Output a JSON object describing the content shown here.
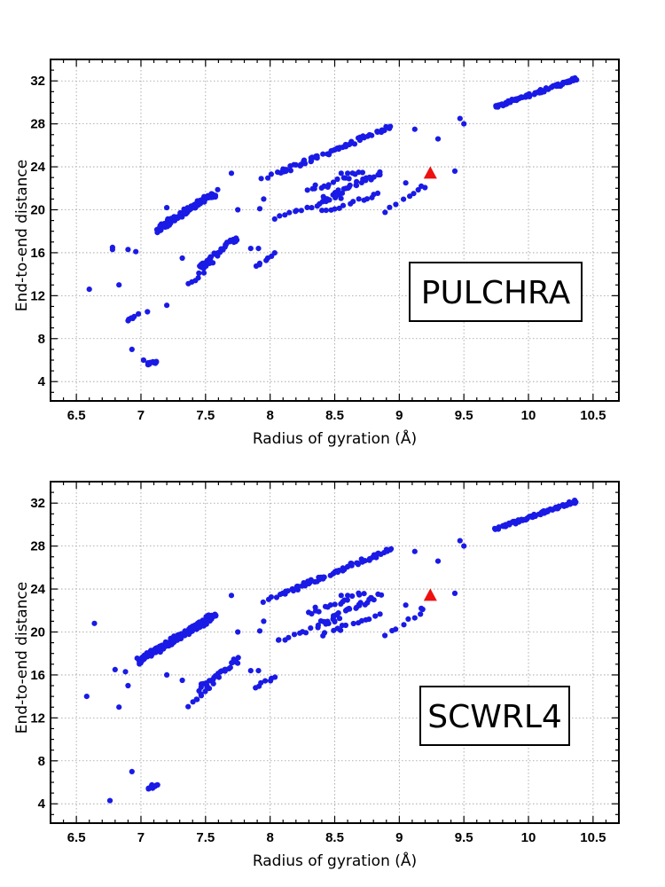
{
  "colors": {
    "points": "#1a1ae6",
    "reference": "#ee1111",
    "grid": "#9a9a9a"
  },
  "chart_data": [
    {
      "type": "scatter",
      "panel_label": "PULCHRA",
      "xlabel": "Radius of gyration  (Å)",
      "ylabel": "End-to-end distance",
      "xlim": [
        6.3,
        10.7
      ],
      "ylim": [
        2.2,
        34
      ],
      "xticks": [
        6.5,
        7,
        7.5,
        8,
        8.5,
        9,
        9.5,
        10,
        10.5
      ],
      "xtick_labels": [
        "6.5",
        "7",
        "7.5",
        "8",
        "8.5",
        "9",
        "9.5",
        "10",
        "10.5"
      ],
      "yticks": [
        4,
        8,
        12,
        16,
        20,
        24,
        28,
        32
      ],
      "ytick_labels": [
        "4",
        "8",
        "12",
        "16",
        "20",
        "24",
        "28",
        "32"
      ],
      "grid": true,
      "reference_point": {
        "x": 9.24,
        "y": 23.4
      },
      "clusters": [
        {
          "x": [
            9.75,
            10.37
          ],
          "y": [
            29.6,
            32.2
          ],
          "n": 75,
          "spread": 0.12
        },
        {
          "x": [
            8.1,
            8.93
          ],
          "y": [
            23.6,
            27.7
          ],
          "n": 60,
          "spread": 0.18
        },
        {
          "x": [
            7.94,
            8.12
          ],
          "y": [
            22.8,
            23.7
          ],
          "n": 6,
          "spread": 0.15
        },
        {
          "x": [
            8.3,
            8.73
          ],
          "y": [
            21.7,
            23.6
          ],
          "n": 16,
          "spread": 0.2
        },
        {
          "x": [
            8.4,
            8.85
          ],
          "y": [
            20.9,
            23.4
          ],
          "n": 28,
          "spread": 0.2
        },
        {
          "x": [
            8.05,
            8.55
          ],
          "y": [
            19.2,
            21.2
          ],
          "n": 16,
          "spread": 0.2
        },
        {
          "x": [
            8.4,
            8.85
          ],
          "y": [
            19.8,
            21.5
          ],
          "n": 14,
          "spread": 0.2
        },
        {
          "x": [
            8.9,
            9.2
          ],
          "y": [
            19.8,
            22.0
          ],
          "n": 8,
          "spread": 0.2
        },
        {
          "x": [
            7.12,
            7.58
          ],
          "y": [
            18.1,
            21.6
          ],
          "n": 90,
          "spread": 0.28
        },
        {
          "x": [
            7.45,
            7.75
          ],
          "y": [
            14.7,
            17.4
          ],
          "n": 30,
          "spread": 0.25
        },
        {
          "x": [
            7.38,
            7.55
          ],
          "y": [
            13.2,
            15.0
          ],
          "n": 10,
          "spread": 0.2
        },
        {
          "x": [
            7.88,
            8.05
          ],
          "y": [
            14.8,
            15.9
          ],
          "n": 7,
          "spread": 0.15
        },
        {
          "x": [
            7.05,
            7.12
          ],
          "y": [
            5.6,
            5.9
          ],
          "n": 16,
          "spread": 0.12
        },
        {
          "x": [
            6.9,
            6.95
          ],
          "y": [
            9.7,
            10.0
          ],
          "n": 6,
          "spread": 0.12
        }
      ],
      "points": [
        {
          "x": 6.6,
          "y": 12.6
        },
        {
          "x": 6.78,
          "y": 16.5
        },
        {
          "x": 6.78,
          "y": 16.3
        },
        {
          "x": 6.83,
          "y": 13.0
        },
        {
          "x": 6.93,
          "y": 7.0
        },
        {
          "x": 6.9,
          "y": 16.3
        },
        {
          "x": 6.96,
          "y": 16.1
        },
        {
          "x": 6.98,
          "y": 10.3
        },
        {
          "x": 7.05,
          "y": 10.5
        },
        {
          "x": 7.02,
          "y": 6.0
        },
        {
          "x": 7.2,
          "y": 11.1
        },
        {
          "x": 7.2,
          "y": 20.2
        },
        {
          "x": 7.32,
          "y": 15.5
        },
        {
          "x": 7.7,
          "y": 23.4
        },
        {
          "x": 7.75,
          "y": 20.0
        },
        {
          "x": 7.85,
          "y": 16.4
        },
        {
          "x": 7.91,
          "y": 16.4
        },
        {
          "x": 7.95,
          "y": 21.0
        },
        {
          "x": 7.92,
          "y": 20.1
        },
        {
          "x": 8.27,
          "y": 24.3
        },
        {
          "x": 8.55,
          "y": 23.4
        },
        {
          "x": 8.6,
          "y": 23.4
        },
        {
          "x": 8.35,
          "y": 22.3
        },
        {
          "x": 9.05,
          "y": 22.5
        },
        {
          "x": 9.12,
          "y": 27.5
        },
        {
          "x": 9.3,
          "y": 26.6
        },
        {
          "x": 9.43,
          "y": 23.6
        },
        {
          "x": 9.47,
          "y": 28.5
        },
        {
          "x": 9.5,
          "y": 28.0
        },
        {
          "x": 9.17,
          "y": 22.2
        }
      ]
    },
    {
      "type": "scatter",
      "panel_label": "SCWRL4",
      "xlabel": "Radius of gyration  (Å)",
      "ylabel": "End-to-end distance",
      "xlim": [
        6.3,
        10.7
      ],
      "ylim": [
        2.2,
        34
      ],
      "xticks": [
        6.5,
        7,
        7.5,
        8,
        8.5,
        9,
        9.5,
        10,
        10.5
      ],
      "xtick_labels": [
        "6.5",
        "7",
        "7.5",
        "8",
        "8.5",
        "9",
        "9.5",
        "10",
        "10.5"
      ],
      "yticks": [
        4,
        8,
        12,
        16,
        20,
        24,
        28,
        32
      ],
      "ytick_labels": [
        "4",
        "8",
        "12",
        "16",
        "20",
        "24",
        "28",
        "32"
      ],
      "grid": true,
      "reference_point": {
        "x": 9.24,
        "y": 23.4
      },
      "clusters": [
        {
          "x": [
            9.75,
            10.37
          ],
          "y": [
            29.6,
            32.2
          ],
          "n": 75,
          "spread": 0.12
        },
        {
          "x": [
            8.1,
            8.93
          ],
          "y": [
            23.6,
            27.7
          ],
          "n": 60,
          "spread": 0.18
        },
        {
          "x": [
            7.94,
            8.12
          ],
          "y": [
            22.8,
            23.7
          ],
          "n": 6,
          "spread": 0.15
        },
        {
          "x": [
            8.3,
            8.73
          ],
          "y": [
            21.7,
            23.6
          ],
          "n": 16,
          "spread": 0.2
        },
        {
          "x": [
            8.4,
            8.85
          ],
          "y": [
            20.9,
            23.4
          ],
          "n": 28,
          "spread": 0.2
        },
        {
          "x": [
            8.05,
            8.55
          ],
          "y": [
            19.2,
            21.2
          ],
          "n": 16,
          "spread": 0.2
        },
        {
          "x": [
            8.4,
            8.85
          ],
          "y": [
            19.8,
            21.5
          ],
          "n": 14,
          "spread": 0.2
        },
        {
          "x": [
            8.9,
            9.2
          ],
          "y": [
            19.8,
            22.0
          ],
          "n": 8,
          "spread": 0.2
        },
        {
          "x": [
            6.98,
            7.58
          ],
          "y": [
            17.3,
            21.6
          ],
          "n": 130,
          "spread": 0.3
        },
        {
          "x": [
            7.45,
            7.75
          ],
          "y": [
            14.7,
            17.4
          ],
          "n": 30,
          "spread": 0.25
        },
        {
          "x": [
            7.38,
            7.55
          ],
          "y": [
            13.2,
            15.0
          ],
          "n": 10,
          "spread": 0.2
        },
        {
          "x": [
            7.88,
            8.05
          ],
          "y": [
            14.8,
            15.9
          ],
          "n": 7,
          "spread": 0.15
        },
        {
          "x": [
            7.06,
            7.13
          ],
          "y": [
            5.5,
            5.8
          ],
          "n": 10,
          "spread": 0.12
        }
      ],
      "points": [
        {
          "x": 6.58,
          "y": 14.0
        },
        {
          "x": 6.64,
          "y": 20.8
        },
        {
          "x": 6.76,
          "y": 4.3
        },
        {
          "x": 6.8,
          "y": 16.5
        },
        {
          "x": 6.83,
          "y": 13.0
        },
        {
          "x": 6.88,
          "y": 16.3
        },
        {
          "x": 6.9,
          "y": 15.0
        },
        {
          "x": 6.93,
          "y": 7.0
        },
        {
          "x": 7.2,
          "y": 16.0
        },
        {
          "x": 7.32,
          "y": 15.5
        },
        {
          "x": 7.7,
          "y": 23.4
        },
        {
          "x": 7.75,
          "y": 20.0
        },
        {
          "x": 7.85,
          "y": 16.4
        },
        {
          "x": 7.91,
          "y": 16.4
        },
        {
          "x": 7.95,
          "y": 21.0
        },
        {
          "x": 7.92,
          "y": 20.1
        },
        {
          "x": 8.27,
          "y": 24.3
        },
        {
          "x": 8.55,
          "y": 23.4
        },
        {
          "x": 8.6,
          "y": 23.4
        },
        {
          "x": 8.35,
          "y": 22.3
        },
        {
          "x": 9.05,
          "y": 22.5
        },
        {
          "x": 9.12,
          "y": 27.5
        },
        {
          "x": 9.3,
          "y": 26.6
        },
        {
          "x": 9.43,
          "y": 23.6
        },
        {
          "x": 9.47,
          "y": 28.5
        },
        {
          "x": 9.5,
          "y": 28.0
        },
        {
          "x": 9.17,
          "y": 22.2
        }
      ]
    }
  ]
}
